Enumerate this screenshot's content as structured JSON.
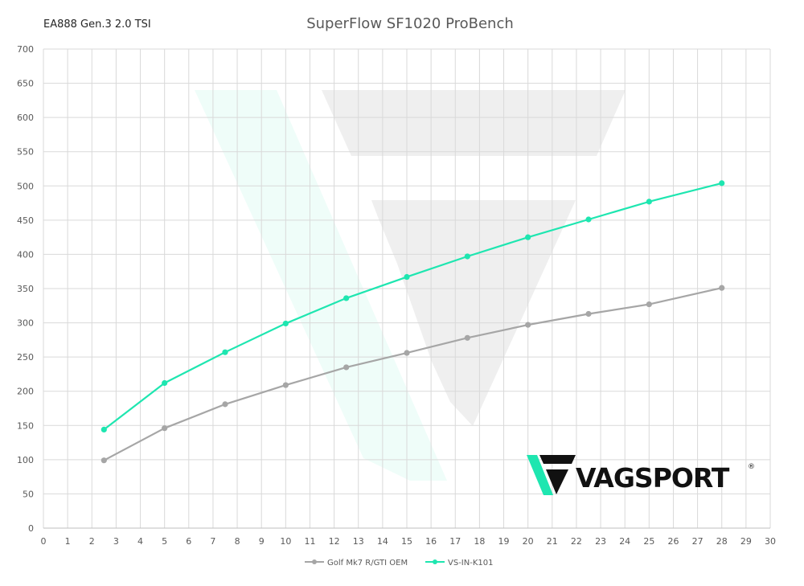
{
  "header": {
    "engine": "EA888 Gen.3 2.0 TSI"
  },
  "logo": {
    "brand": "VAGSPORT",
    "registered": "®"
  },
  "chart_data": {
    "type": "line",
    "title": "SuperFlow SF1020 ProBench",
    "xlabel": "",
    "ylabel": "",
    "xlim": [
      0,
      30
    ],
    "ylim": [
      0,
      700
    ],
    "xticks": [
      0,
      1,
      2,
      3,
      4,
      5,
      6,
      7,
      8,
      9,
      10,
      11,
      12,
      13,
      14,
      15,
      16,
      17,
      18,
      19,
      20,
      21,
      22,
      23,
      24,
      25,
      26,
      27,
      28,
      29,
      30
    ],
    "yticks": [
      0,
      50,
      100,
      150,
      200,
      250,
      300,
      350,
      400,
      450,
      500,
      550,
      600,
      650,
      700
    ],
    "grid": true,
    "legend_position": "bottom",
    "series": [
      {
        "name": "Golf Mk7 R/GTI OEM",
        "color": "#a6a6a6",
        "x": [
          2.5,
          5,
          7.5,
          10,
          12.5,
          15,
          17.5,
          20,
          22.5,
          25,
          28
        ],
        "y": [
          99,
          146,
          181,
          209,
          235,
          256,
          278,
          297,
          313,
          327,
          351
        ]
      },
      {
        "name": "VS-IN-K101",
        "color": "#1ee6b0",
        "x": [
          2.5,
          5,
          7.5,
          10,
          12.5,
          15,
          17.5,
          20,
          22.5,
          25,
          28
        ],
        "y": [
          144,
          212,
          257,
          299,
          336,
          367,
          397,
          425,
          451,
          477,
          504
        ]
      }
    ]
  }
}
